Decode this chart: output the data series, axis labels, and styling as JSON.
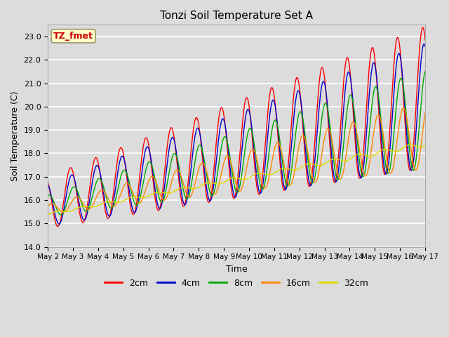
{
  "title": "Tonzi Soil Temperature Set A",
  "xlabel": "Time",
  "ylabel": "Soil Temperature (C)",
  "ylim": [
    14.0,
    23.5
  ],
  "background_color": "#dcdcdc",
  "plot_bg_color": "#dcdcdc",
  "annotation_text": "TZ_fmet",
  "annotation_bg": "#ffffcc",
  "annotation_border": "#999966",
  "annotation_text_color": "#cc0000",
  "series_colors": {
    "2cm": "#ff0000",
    "4cm": "#0000cc",
    "8cm": "#00aa00",
    "16cm": "#ff8800",
    "32cm": "#dddd00"
  },
  "tick_labels": [
    "May 2",
    "May 3",
    "May 4",
    "May 5",
    "May 6",
    "May 7",
    "May 8",
    "May 9",
    "May 10",
    "May 11",
    "May 12",
    "May 13",
    "May 14",
    "May 15",
    "May 16",
    "May 17"
  ],
  "yticks": [
    14.0,
    15.0,
    16.0,
    17.0,
    18.0,
    19.0,
    20.0,
    21.0,
    22.0,
    23.0
  ],
  "num_points_per_day": 96,
  "days": 15
}
